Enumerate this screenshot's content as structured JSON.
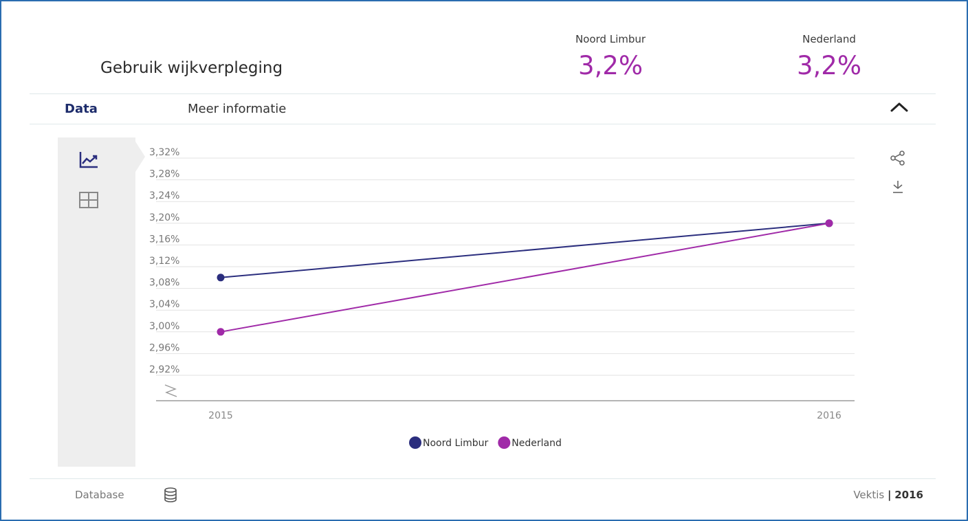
{
  "header": {
    "title": "Gebruik wijkverpleging",
    "stats": [
      {
        "label": "Noord Limbur",
        "value": "3,2%"
      },
      {
        "label": "Nederland",
        "value": "3,2%"
      }
    ]
  },
  "tabs": [
    {
      "label": "Data",
      "active": true
    },
    {
      "label": "Meer informatie",
      "active": false
    }
  ],
  "icons": {
    "collapse": "chevron-up-icon",
    "line_view": "line-chart-icon",
    "table_view": "table-grid-icon",
    "share": "share-icon",
    "download": "download-icon",
    "axis_break": "axis-break-icon",
    "database": "database-icon"
  },
  "colors": {
    "noord_limbur": "#2b2e7e",
    "nederland": "#a02aa8",
    "grid": "#e2e2e2",
    "axis": "#888888",
    "active_tab": "#1d2c6b"
  },
  "chart_data": {
    "type": "line",
    "x": [
      "2015",
      "2016"
    ],
    "y_ticks": [
      "3,32%",
      "3,28%",
      "3,24%",
      "3,20%",
      "3,16%",
      "3,12%",
      "3,08%",
      "3,04%",
      "3,00%",
      "2,96%",
      "2,92%"
    ],
    "y_tick_values": [
      3.32,
      3.28,
      3.24,
      3.2,
      3.16,
      3.12,
      3.08,
      3.04,
      3.0,
      2.96,
      2.92
    ],
    "ylim": [
      2.92,
      3.32
    ],
    "axis_break": true,
    "grid": true,
    "legend_position": "bottom-center",
    "series": [
      {
        "name": "Noord Limbur",
        "values": [
          3.1,
          3.2
        ],
        "color": "#2b2e7e"
      },
      {
        "name": "Nederland",
        "values": [
          3.0,
          3.2
        ],
        "color": "#a02aa8"
      }
    ]
  },
  "footer": {
    "source_label": "Database",
    "credit_name": "Vektis",
    "credit_sep": "|",
    "credit_year": "2016"
  }
}
